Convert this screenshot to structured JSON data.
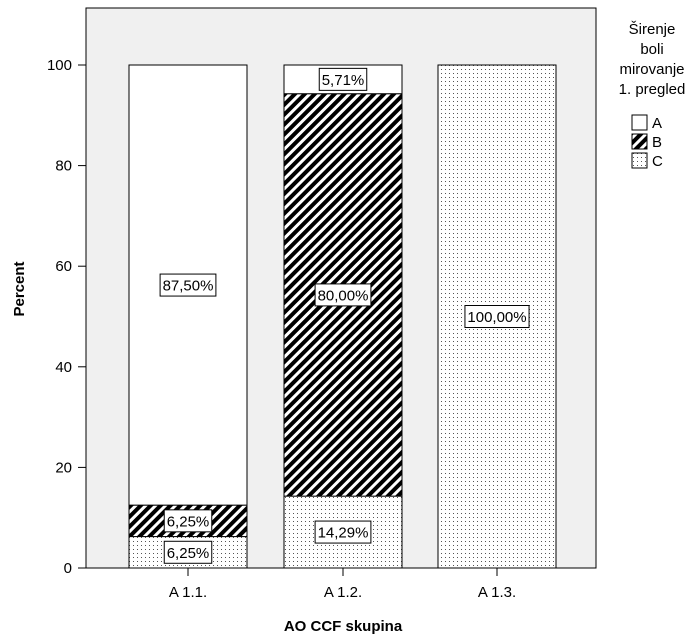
{
  "chart_data": {
    "type": "bar",
    "stacked": true,
    "title": "",
    "xlabel": "AO CCF skupina",
    "ylabel": "Percent",
    "categories": [
      "A 1.1.",
      "A 1.2.",
      "A 1.3."
    ],
    "ylim": [
      0,
      100
    ],
    "yticks": [
      0,
      20,
      40,
      60,
      80,
      100
    ],
    "legend": {
      "title_lines": [
        "Širenje",
        "boli",
        "mirovanje",
        "1. pregled"
      ],
      "placement": "right"
    },
    "series": [
      {
        "name": "C",
        "pattern": "dots",
        "values": [
          6.25,
          14.29,
          100
        ],
        "labels": [
          "6,25%",
          "14,29%",
          "100,00%"
        ]
      },
      {
        "name": "B",
        "pattern": "hatch",
        "values": [
          6.25,
          80.0,
          0
        ],
        "labels": [
          "6,25%",
          "80,00%",
          ""
        ]
      },
      {
        "name": "A",
        "pattern": "white",
        "values": [
          87.5,
          5.71,
          0
        ],
        "labels": [
          "87,50%",
          "5,71%",
          ""
        ]
      }
    ],
    "grid": false,
    "plot_background": "#f0f0f0"
  }
}
